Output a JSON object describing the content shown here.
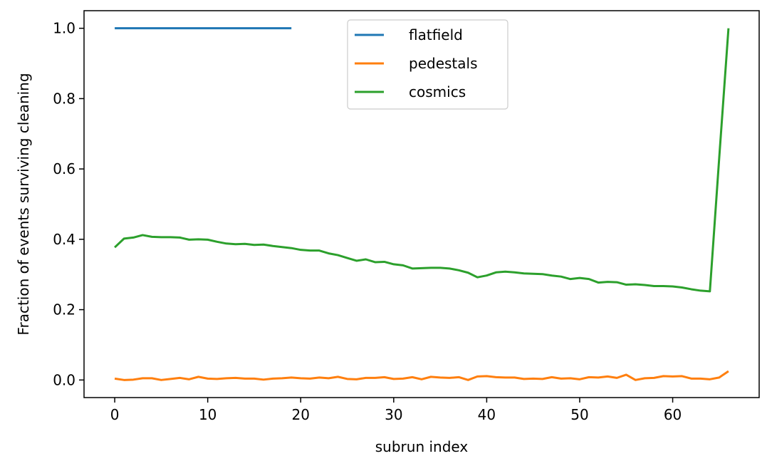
{
  "chart_data": {
    "type": "line",
    "title": "",
    "xlabel": "subrun index",
    "ylabel": "Fraction of events surviving cleaning",
    "xlim": [
      -3.3,
      69.3
    ],
    "ylim": [
      -0.05,
      1.05
    ],
    "xticks": [
      0,
      10,
      20,
      30,
      40,
      50,
      60
    ],
    "yticks": [
      0.0,
      0.2,
      0.4,
      0.6,
      0.8,
      1.0
    ],
    "xtick_labels": [
      "0",
      "10",
      "20",
      "30",
      "40",
      "50",
      "60"
    ],
    "ytick_labels": [
      "0.0",
      "0.2",
      "0.4",
      "0.6",
      "0.8",
      "1.0"
    ],
    "grid": false,
    "legend_position": "top-center",
    "series": [
      {
        "name": "flatfield",
        "color": "#1f77b4",
        "x": [
          0,
          1,
          2,
          3,
          4,
          5,
          6,
          7,
          8,
          9,
          10,
          11,
          12,
          13,
          14,
          15,
          16,
          17,
          18,
          19
        ],
        "y": [
          1,
          1,
          1,
          1,
          1,
          1,
          1,
          1,
          1,
          1,
          1,
          1,
          1,
          1,
          1,
          1,
          1,
          1,
          1,
          1
        ]
      },
      {
        "name": "pedestals",
        "color": "#ff7f0e",
        "x": [
          0,
          1,
          2,
          3,
          4,
          5,
          6,
          7,
          8,
          9,
          10,
          11,
          12,
          13,
          14,
          15,
          16,
          17,
          18,
          19,
          20,
          21,
          22,
          23,
          24,
          25,
          26,
          27,
          28,
          29,
          30,
          31,
          32,
          33,
          34,
          35,
          36,
          37,
          38,
          39,
          40,
          41,
          42,
          43,
          44,
          45,
          46,
          47,
          48,
          49,
          50,
          51,
          52,
          53,
          54,
          55,
          56,
          57,
          58,
          59,
          60,
          61,
          62,
          63,
          64,
          65,
          66
        ],
        "y": [
          0.004,
          0.0,
          0.001,
          0.005,
          0.005,
          0.0,
          0.003,
          0.006,
          0.002,
          0.009,
          0.004,
          0.003,
          0.005,
          0.006,
          0.004,
          0.004,
          0.001,
          0.004,
          0.005,
          0.007,
          0.005,
          0.004,
          0.007,
          0.005,
          0.009,
          0.003,
          0.002,
          0.006,
          0.006,
          0.008,
          0.003,
          0.004,
          0.008,
          0.002,
          0.009,
          0.007,
          0.006,
          0.008,
          0.0,
          0.01,
          0.011,
          0.008,
          0.007,
          0.007,
          0.003,
          0.004,
          0.003,
          0.008,
          0.004,
          0.005,
          0.002,
          0.008,
          0.007,
          0.01,
          0.006,
          0.015,
          0.0,
          0.005,
          0.006,
          0.011,
          0.01,
          0.011,
          0.004,
          0.004,
          0.002,
          0.007,
          0.025
        ]
      },
      {
        "name": "cosmics",
        "color": "#2ca02c",
        "x": [
          0,
          1,
          2,
          3,
          4,
          5,
          6,
          7,
          8,
          9,
          10,
          11,
          12,
          13,
          14,
          15,
          16,
          17,
          18,
          19,
          20,
          21,
          22,
          23,
          24,
          25,
          26,
          27,
          28,
          29,
          30,
          31,
          32,
          33,
          34,
          35,
          36,
          37,
          38,
          39,
          40,
          41,
          42,
          43,
          44,
          45,
          46,
          47,
          48,
          49,
          50,
          51,
          52,
          53,
          54,
          55,
          56,
          57,
          58,
          59,
          60,
          61,
          62,
          63,
          64,
          65,
          66
        ],
        "y": [
          0.377,
          0.402,
          0.405,
          0.412,
          0.407,
          0.406,
          0.406,
          0.405,
          0.399,
          0.4,
          0.399,
          0.393,
          0.388,
          0.386,
          0.387,
          0.384,
          0.385,
          0.381,
          0.378,
          0.375,
          0.37,
          0.368,
          0.368,
          0.36,
          0.355,
          0.347,
          0.339,
          0.343,
          0.335,
          0.336,
          0.329,
          0.326,
          0.317,
          0.318,
          0.319,
          0.319,
          0.317,
          0.312,
          0.305,
          0.292,
          0.297,
          0.306,
          0.308,
          0.306,
          0.303,
          0.302,
          0.301,
          0.297,
          0.294,
          0.287,
          0.29,
          0.287,
          0.277,
          0.279,
          0.278,
          0.271,
          0.272,
          0.27,
          0.267,
          0.267,
          0.266,
          0.263,
          0.258,
          0.254,
          0.252,
          0.63,
          1.0
        ]
      }
    ]
  }
}
